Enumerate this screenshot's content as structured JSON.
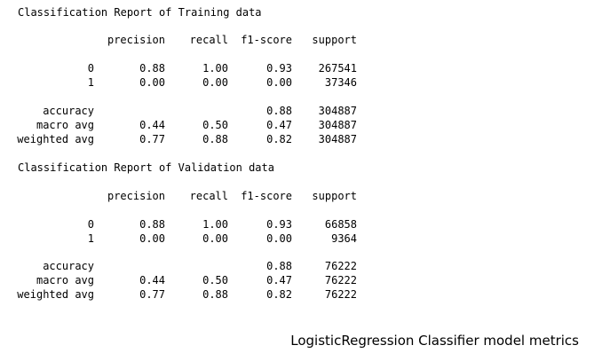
{
  "reports": [
    {
      "title": "Classification Report of Training data",
      "headers": [
        "precision",
        "recall",
        "f1-score",
        "support"
      ],
      "rows": [
        {
          "label": "0",
          "precision": "0.88",
          "recall": "1.00",
          "f1": "0.93",
          "support": "267541"
        },
        {
          "label": "1",
          "precision": "0.00",
          "recall": "0.00",
          "f1": "0.00",
          "support": "37346"
        },
        {
          "label": "accuracy",
          "precision": "",
          "recall": "",
          "f1": "0.88",
          "support": "304887"
        },
        {
          "label": "macro avg",
          "precision": "0.44",
          "recall": "0.50",
          "f1": "0.47",
          "support": "304887"
        },
        {
          "label": "weighted avg",
          "precision": "0.77",
          "recall": "0.88",
          "f1": "0.82",
          "support": "304887"
        }
      ]
    },
    {
      "title": "Classification Report of Validation data",
      "headers": [
        "precision",
        "recall",
        "f1-score",
        "support"
      ],
      "rows": [
        {
          "label": "0",
          "precision": "0.88",
          "recall": "1.00",
          "f1": "0.93",
          "support": "66858"
        },
        {
          "label": "1",
          "precision": "0.00",
          "recall": "0.00",
          "f1": "0.00",
          "support": "9364"
        },
        {
          "label": "accuracy",
          "precision": "",
          "recall": "",
          "f1": "0.88",
          "support": "76222"
        },
        {
          "label": "macro avg",
          "precision": "0.44",
          "recall": "0.50",
          "f1": "0.47",
          "support": "76222"
        },
        {
          "label": "weighted avg",
          "precision": "0.77",
          "recall": "0.88",
          "f1": "0.82",
          "support": "76222"
        }
      ]
    }
  ],
  "caption": "LogisticRegression Classifier model metrics"
}
